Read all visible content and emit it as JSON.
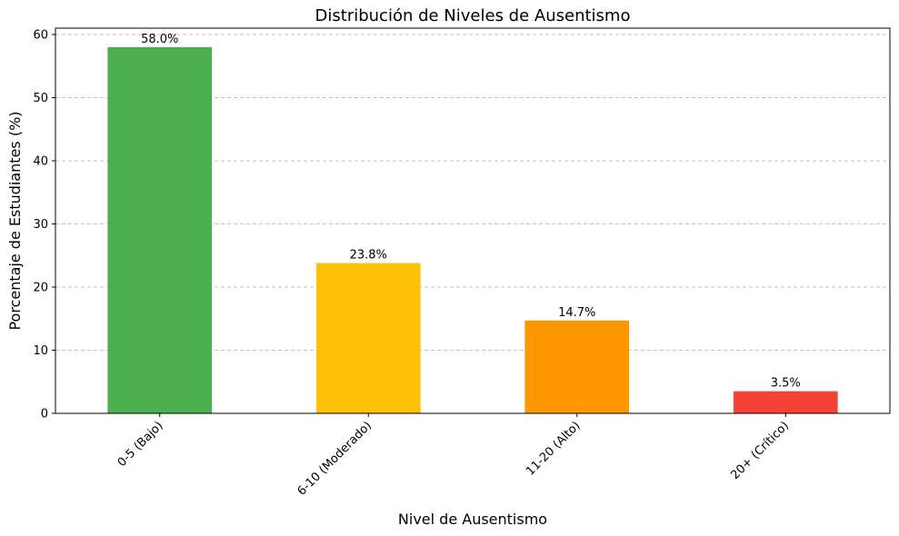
{
  "chart_data": {
    "type": "bar",
    "title": "Distribución de Niveles de Ausentismo",
    "xlabel": "Nivel de Ausentismo",
    "ylabel": "Porcentaje de Estudiantes (%)",
    "categories": [
      "0-5 (Bajo)",
      "6-10 (Moderado)",
      "11-20 (Alto)",
      "20+ (Crítico)"
    ],
    "values": [
      58.0,
      23.8,
      14.7,
      3.5
    ],
    "data_labels": [
      "58.0%",
      "23.8%",
      "14.7%",
      "3.5%"
    ],
    "colors": [
      "#4caf50",
      "#ffc107",
      "#ff9800",
      "#f44336"
    ],
    "ylim": [
      0,
      61
    ],
    "yticks": [
      0,
      10,
      20,
      30,
      40,
      50,
      60
    ],
    "grid": "y-dashed",
    "legend": "none"
  }
}
